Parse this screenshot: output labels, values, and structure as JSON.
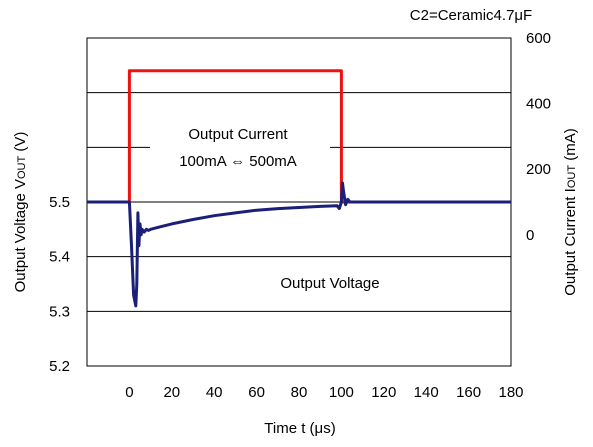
{
  "chart_data": {
    "type": "line",
    "title": "C2=Ceramic4.7μF",
    "xlabel": "Time t (μs)",
    "ylabel_left": {
      "main": "Output Voltage V",
      "sub": "OUT",
      "unit": " (V)"
    },
    "ylabel_right": {
      "main": "Output Current  I",
      "sub": "OUT",
      "unit": " (mA)"
    },
    "x_range": [
      -20,
      180
    ],
    "x_ticks": [
      0,
      20,
      40,
      60,
      80,
      100,
      120,
      140,
      160,
      180
    ],
    "y_left_range": [
      5.2,
      5.8
    ],
    "y_left_ticks": [
      5.2,
      5.3,
      5.4,
      5.5
    ],
    "y_right_range": [
      -400,
      600
    ],
    "y_right_ticks": [
      0,
      200,
      400,
      600
    ],
    "grid": "horizontal",
    "annotations": [
      {
        "lines": [
          "Output Current",
          "100mA ⇔ 500mA"
        ]
      },
      {
        "lines": [
          "Output Voltage"
        ]
      }
    ],
    "series": [
      {
        "axis": "right",
        "color": "#ee1111",
        "x": [
          -20,
          0,
          0,
          100,
          100,
          180
        ],
        "y": [
          100,
          100,
          500,
          500,
          100,
          100
        ]
      },
      {
        "axis": "left",
        "color": "#1a1f7a",
        "x": [
          -20,
          0,
          1,
          2,
          3,
          3.5,
          4,
          4.5,
          5,
          5.5,
          6,
          7,
          8,
          9,
          10,
          12,
          15,
          20,
          30,
          40,
          50,
          60,
          70,
          80,
          90,
          98,
          99,
          100,
          100.5,
          101,
          102,
          103,
          104,
          105,
          110,
          120,
          140,
          160,
          180
        ],
        "y": [
          5.5,
          5.5,
          5.42,
          5.33,
          5.31,
          5.35,
          5.48,
          5.42,
          5.46,
          5.44,
          5.45,
          5.445,
          5.45,
          5.448,
          5.45,
          5.452,
          5.455,
          5.46,
          5.468,
          5.475,
          5.48,
          5.485,
          5.488,
          5.49,
          5.492,
          5.493,
          5.488,
          5.5,
          5.535,
          5.52,
          5.495,
          5.505,
          5.5,
          5.5,
          5.5,
          5.5,
          5.5,
          5.5,
          5.5
        ]
      }
    ]
  }
}
